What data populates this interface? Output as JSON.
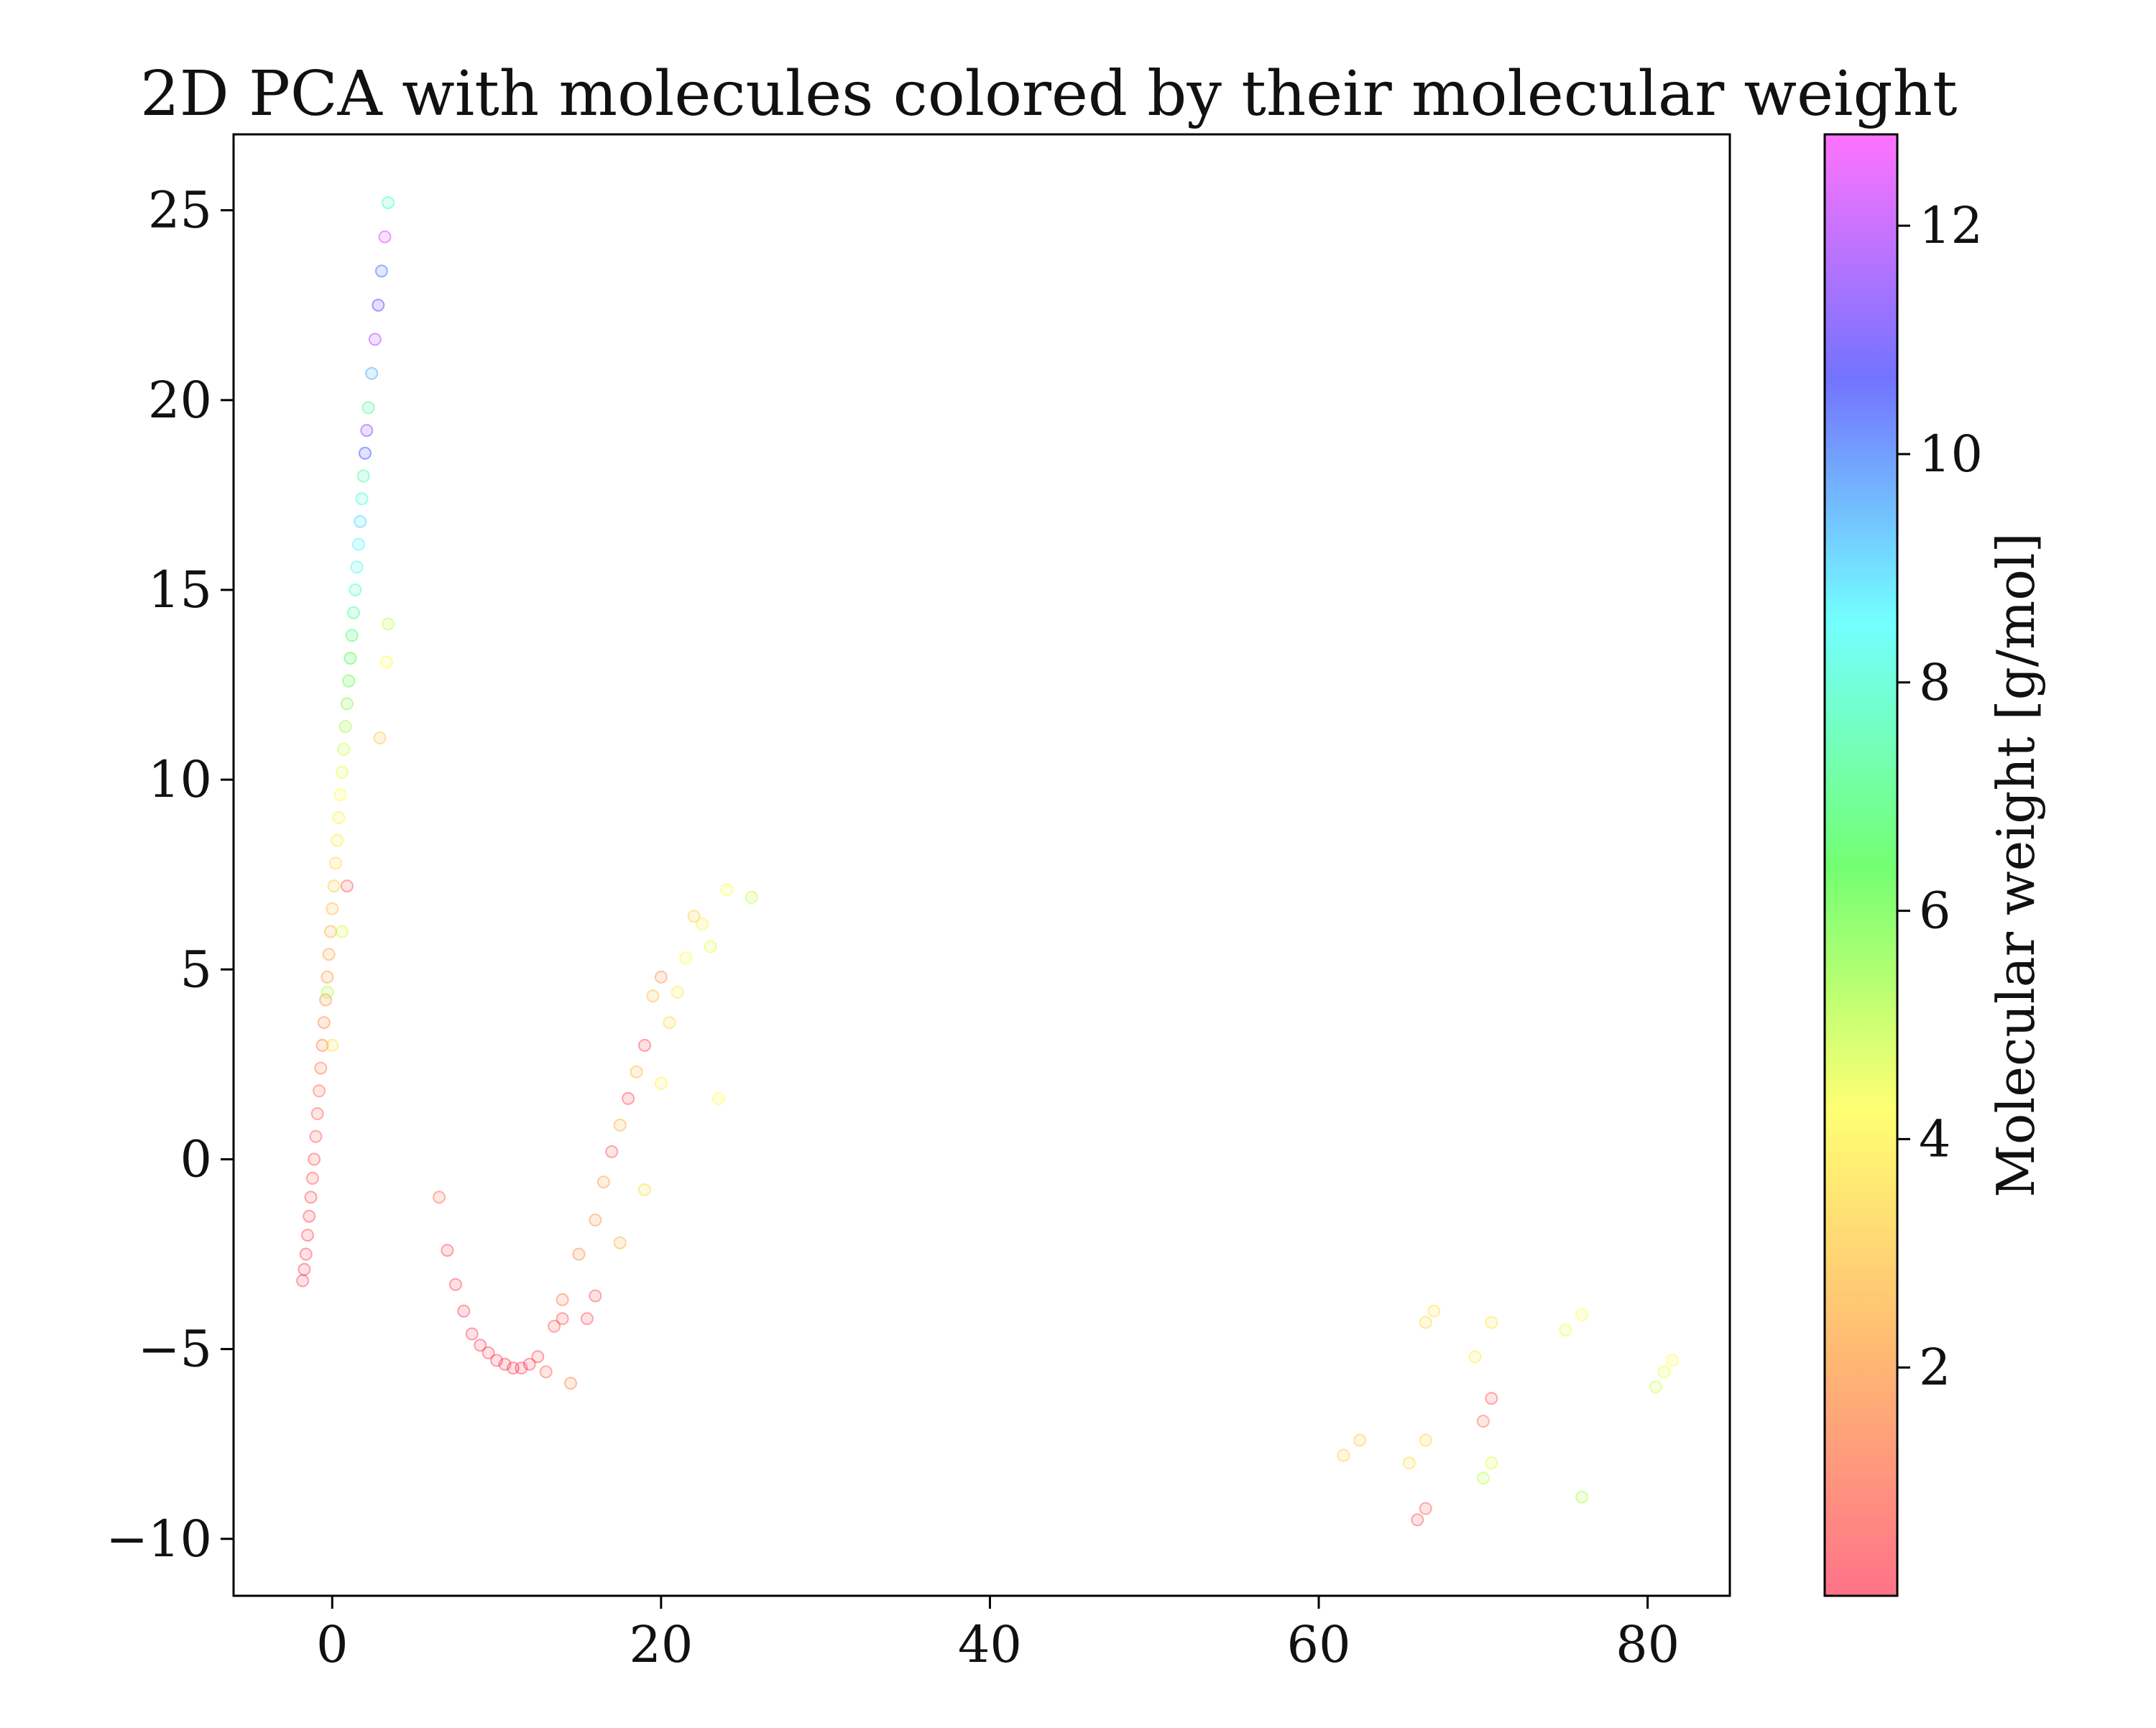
{
  "chart_data": {
    "type": "scatter",
    "title": "2D PCA with molecules colored by their molecular weight",
    "xlabel": "",
    "ylabel": "",
    "xlim": [
      -6,
      85
    ],
    "ylim": [
      -11.5,
      27
    ],
    "xticks": [
      0,
      20,
      40,
      60,
      80
    ],
    "xtick_labels": [
      "0",
      "20",
      "40",
      "60",
      "80"
    ],
    "yticks": [
      -10,
      -5,
      0,
      5,
      10,
      15,
      20,
      25
    ],
    "ytick_labels": [
      "−10",
      "−5",
      "0",
      "5",
      "10",
      "15",
      "20",
      "25"
    ],
    "grid": false,
    "legend": "none",
    "colorbar": {
      "label": "Molecular weight [g/mol]",
      "range": [
        0,
        12.8
      ],
      "ticks": [
        2,
        4,
        6,
        8,
        10,
        12
      ],
      "tick_labels": [
        "2",
        "4",
        "6",
        "8",
        "10",
        "12"
      ],
      "colormap": "gist_rainbow_r",
      "colormap_stops": [
        "#ff0028",
        "#ff8000",
        "#ffff00",
        "#00ff00",
        "#00ffff",
        "#0000ff",
        "#ff00ff"
      ]
    },
    "point_alpha": 0.12,
    "series": [
      {
        "points": [
          [
            -1.8,
            -3.2,
            0.1
          ],
          [
            -1.7,
            -2.9,
            0.1
          ],
          [
            -1.6,
            -2.5,
            0.2
          ],
          [
            -1.5,
            -2.0,
            0.3
          ],
          [
            -1.4,
            -1.5,
            0.3
          ],
          [
            -1.3,
            -1.0,
            0.4
          ],
          [
            -1.2,
            -0.5,
            0.5
          ],
          [
            -1.1,
            0.0,
            0.6
          ],
          [
            -1.0,
            0.6,
            0.7
          ],
          [
            -0.9,
            1.2,
            0.8
          ],
          [
            -0.8,
            1.8,
            1.0
          ],
          [
            -0.7,
            2.4,
            1.2
          ],
          [
            -0.6,
            3.0,
            1.4
          ],
          [
            -0.5,
            3.6,
            1.6
          ],
          [
            -0.4,
            4.2,
            1.8
          ],
          [
            -0.3,
            4.8,
            2.0
          ],
          [
            -0.2,
            5.4,
            2.2
          ],
          [
            -0.1,
            6.0,
            2.5
          ],
          [
            0.0,
            6.6,
            2.8
          ],
          [
            0.1,
            7.2,
            3.1
          ],
          [
            0.2,
            7.8,
            3.4
          ],
          [
            0.3,
            8.4,
            3.7
          ],
          [
            0.4,
            9.0,
            4.0
          ],
          [
            0.5,
            9.6,
            4.3
          ],
          [
            0.6,
            10.2,
            4.6
          ],
          [
            0.7,
            10.8,
            4.9
          ],
          [
            0.8,
            11.4,
            5.3
          ],
          [
            0.9,
            12.0,
            5.7
          ],
          [
            1.0,
            12.6,
            6.1
          ],
          [
            1.1,
            13.2,
            6.5
          ],
          [
            1.2,
            13.8,
            7.0
          ],
          [
            1.3,
            14.4,
            7.4
          ],
          [
            1.4,
            15.0,
            7.8
          ],
          [
            1.5,
            15.6,
            8.3
          ],
          [
            1.6,
            16.2,
            8.6
          ],
          [
            1.7,
            16.8,
            9.0
          ],
          [
            1.8,
            17.4,
            8.0
          ],
          [
            1.9,
            18.0,
            7.5
          ],
          [
            2.0,
            18.6,
            10.5
          ],
          [
            2.1,
            19.2,
            11.5
          ],
          [
            2.2,
            19.8,
            7.2
          ],
          [
            2.4,
            20.7,
            9.5
          ],
          [
            2.6,
            21.6,
            12.0
          ],
          [
            2.8,
            22.5,
            11.0
          ],
          [
            3.0,
            23.4,
            10.2
          ],
          [
            3.2,
            24.3,
            12.4
          ],
          [
            3.4,
            25.2,
            7.8
          ],
          [
            3.4,
            14.1,
            5.0
          ],
          [
            3.3,
            13.1,
            4.2
          ],
          [
            2.9,
            11.1,
            3.0
          ],
          [
            -0.3,
            4.4,
            5.2
          ],
          [
            0.6,
            6.0,
            4.8
          ],
          [
            0.9,
            7.2,
            0.6
          ],
          [
            0.0,
            3.0,
            3.6
          ]
        ]
      },
      {
        "points": [
          [
            6.5,
            -1.0,
            1.0
          ],
          [
            7.0,
            -2.4,
            0.3
          ],
          [
            7.5,
            -3.3,
            0.2
          ],
          [
            8.0,
            -4.0,
            0.1
          ],
          [
            8.5,
            -4.6,
            0.1
          ],
          [
            9.0,
            -4.9,
            0.1
          ],
          [
            9.5,
            -5.1,
            0.1
          ],
          [
            10.0,
            -5.3,
            0.1
          ],
          [
            10.5,
            -5.4,
            0.1
          ],
          [
            11.0,
            -5.5,
            0.1
          ],
          [
            11.5,
            -5.5,
            0.1
          ],
          [
            12.0,
            -5.4,
            0.2
          ],
          [
            12.5,
            -5.2,
            0.3
          ],
          [
            13.0,
            -5.6,
            0.8
          ],
          [
            13.5,
            -4.4,
            0.6
          ],
          [
            14.0,
            -3.7,
            1.2
          ],
          [
            14.5,
            -5.9,
            1.5
          ],
          [
            15.0,
            -2.5,
            1.6
          ],
          [
            15.5,
            -4.2,
            0.4
          ],
          [
            16.0,
            -1.6,
            1.9
          ],
          [
            16.5,
            -0.6,
            2.1
          ],
          [
            17.0,
            0.2,
            0.5
          ],
          [
            17.5,
            0.9,
            2.4
          ],
          [
            18.0,
            1.6,
            0.3
          ],
          [
            18.5,
            2.3,
            2.6
          ],
          [
            19.0,
            3.0,
            0.2
          ],
          [
            19.5,
            4.3,
            2.8
          ],
          [
            20.0,
            4.8,
            1.8
          ],
          [
            20.5,
            3.6,
            3.4
          ],
          [
            21.0,
            4.4,
            3.8
          ],
          [
            21.5,
            5.3,
            4.2
          ],
          [
            22.0,
            6.4,
            3.2
          ],
          [
            22.5,
            6.2,
            4.0
          ],
          [
            23.0,
            5.6,
            4.6
          ],
          [
            24.0,
            7.1,
            4.4
          ],
          [
            25.5,
            6.9,
            5.0
          ],
          [
            23.5,
            1.6,
            4.2
          ],
          [
            20.0,
            2.0,
            4.0
          ],
          [
            19.0,
            -0.8,
            3.5
          ],
          [
            17.5,
            -2.2,
            2.5
          ],
          [
            16.0,
            -3.6,
            0.4
          ],
          [
            14.0,
            -4.2,
            0.5
          ]
        ]
      },
      {
        "points": [
          [
            61.5,
            -7.8,
            3.2
          ],
          [
            62.5,
            -7.4,
            3.0
          ],
          [
            65.5,
            -8.0,
            3.5
          ],
          [
            66.5,
            -7.4,
            3.3
          ],
          [
            66.0,
            -9.5,
            0.4
          ],
          [
            66.5,
            -9.2,
            0.6
          ],
          [
            67.0,
            -4.0,
            3.6
          ],
          [
            66.5,
            -4.3,
            3.4
          ],
          [
            69.5,
            -5.2,
            3.8
          ],
          [
            70.0,
            -6.9,
            1.0
          ],
          [
            70.5,
            -6.3,
            0.5
          ],
          [
            70.5,
            -4.3,
            3.6
          ],
          [
            70.0,
            -8.4,
            5.0
          ],
          [
            70.5,
            -8.0,
            4.7
          ],
          [
            75.0,
            -4.5,
            4.5
          ],
          [
            76.0,
            -4.1,
            4.2
          ],
          [
            76.0,
            -8.9,
            5.2
          ],
          [
            80.5,
            -6.0,
            4.8
          ],
          [
            81.0,
            -5.6,
            4.5
          ],
          [
            81.5,
            -5.3,
            4.2
          ]
        ]
      }
    ]
  }
}
